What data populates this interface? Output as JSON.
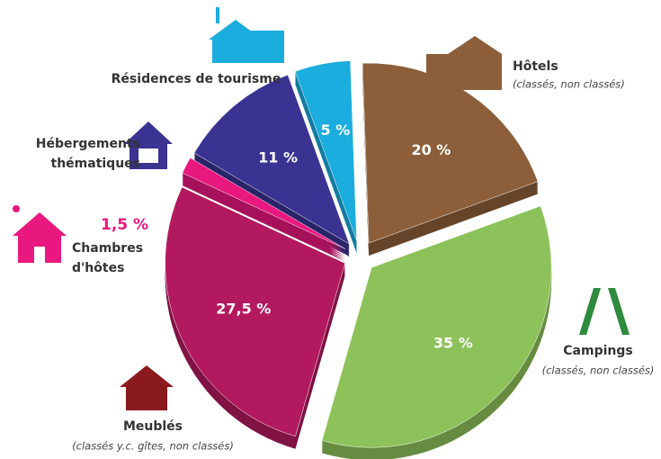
{
  "chart_data": {
    "type": "pie",
    "categories": [
      "Hôtels",
      "Campings",
      "Meublés",
      "Chambres d'hôtes",
      "Hébergements thématiques",
      "Résidences de tourisme"
    ],
    "sublabels": [
      "(classés, non classés)",
      "(classés, non classés)",
      "(classés y.c. gîtes, non classés)",
      null,
      null,
      null
    ],
    "values": [
      20,
      35,
      27.5,
      1.5,
      11,
      5
    ],
    "value_labels": [
      "20 %",
      "35 %",
      "27,5 %",
      "1,5 %",
      "11 %",
      "5 %"
    ],
    "colors": [
      "#8c5f3a",
      "#8dc25a",
      "#b2195e",
      "#e8187f",
      "#3a3392",
      "#1badde"
    ]
  }
}
